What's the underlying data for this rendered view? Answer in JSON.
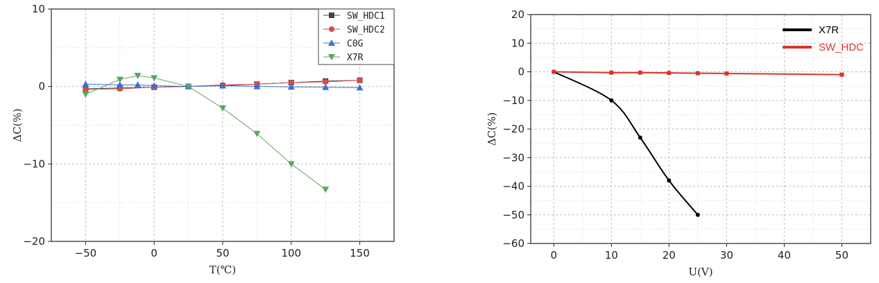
{
  "chart_data": [
    {
      "type": "line",
      "xlabel": "T(℃)",
      "ylabel": "ΔC(%)",
      "xlim": [
        -75,
        175
      ],
      "ylim": [
        -20,
        10
      ],
      "xticks": [
        "−50",
        "0",
        "50",
        "100",
        "150"
      ],
      "xtick_values": [
        -50,
        0,
        50,
        100,
        150
      ],
      "yticks": [
        "10",
        "0",
        "−10",
        "−20"
      ],
      "ytick_values": [
        10,
        0,
        -10,
        -20
      ],
      "legend_position": "top-right",
      "grid": true,
      "series": [
        {
          "name": "SW_HDC1",
          "color": "#444444",
          "marker": "square",
          "x": [
            -50,
            -25,
            0,
            25,
            50,
            75,
            100,
            125,
            150
          ],
          "y": [
            -0.3,
            -0.2,
            -0.1,
            0.0,
            0.1,
            0.3,
            0.5,
            0.7,
            0.8
          ]
        },
        {
          "name": "SW_HDC2",
          "color": "#d94b45",
          "marker": "circle",
          "x": [
            -50,
            -25,
            0,
            25,
            50,
            75,
            100,
            125,
            150
          ],
          "y": [
            -0.4,
            -0.3,
            -0.1,
            0.0,
            0.2,
            0.3,
            0.5,
            0.6,
            0.8
          ]
        },
        {
          "name": "C0G",
          "color": "#3a6fd8",
          "marker": "triangle-up",
          "x": [
            -50,
            -25,
            -12,
            0,
            25,
            50,
            75,
            100,
            125,
            150
          ],
          "y": [
            0.3,
            0.2,
            0.2,
            0.1,
            0.0,
            0.1,
            0.0,
            -0.05,
            -0.1,
            -0.15
          ]
        },
        {
          "name": "X7R",
          "color": "#5ba65b",
          "marker": "triangle-down",
          "x": [
            -50,
            -25,
            -12,
            0,
            25,
            50,
            75,
            100,
            125
          ],
          "y": [
            -1.0,
            0.9,
            1.4,
            1.1,
            0.0,
            -2.8,
            -6.1,
            -10.0,
            -13.3
          ]
        }
      ]
    },
    {
      "type": "line",
      "xlabel": "U(V)",
      "ylabel": "ΔC(%)",
      "xlim": [
        -4,
        55
      ],
      "ylim": [
        -60,
        20
      ],
      "xticks": [
        "0",
        "10",
        "20",
        "30",
        "40",
        "50"
      ],
      "xtick_values": [
        0,
        10,
        20,
        30,
        40,
        50
      ],
      "yticks": [
        "20",
        "10",
        "0",
        "−10",
        "−20",
        "−30",
        "−40",
        "−50",
        "−60"
      ],
      "ytick_values": [
        20,
        10,
        0,
        -10,
        -20,
        -30,
        -40,
        -50,
        -60
      ],
      "legend_position": "top-right",
      "grid": true,
      "series": [
        {
          "name": "X7R",
          "color": "#000000",
          "marker": "circle",
          "x": [
            0,
            10,
            15,
            20,
            25
          ],
          "y": [
            0,
            -10,
            -23,
            -38,
            -50
          ]
        },
        {
          "name": "SW_HDC",
          "color": "#d9342b",
          "marker": "square",
          "x": [
            0,
            10,
            15,
            20,
            25,
            30,
            50
          ],
          "y": [
            0,
            -0.3,
            -0.3,
            -0.4,
            -0.5,
            -0.6,
            -1.0
          ]
        }
      ]
    }
  ]
}
